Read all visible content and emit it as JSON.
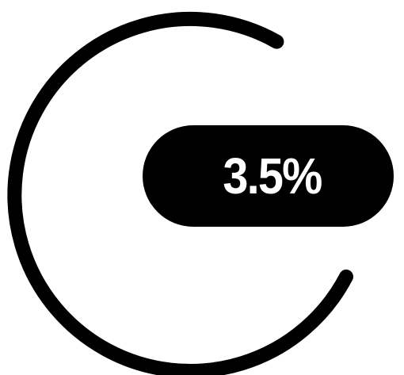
{
  "badge": {
    "value_text": "3.5%"
  },
  "colors": {
    "background": "#ffffff",
    "ring": "#000000",
    "badge_fill": "#000000",
    "badge_text": "#ffffff"
  },
  "icons": {
    "ring": "open-ring-icon"
  }
}
